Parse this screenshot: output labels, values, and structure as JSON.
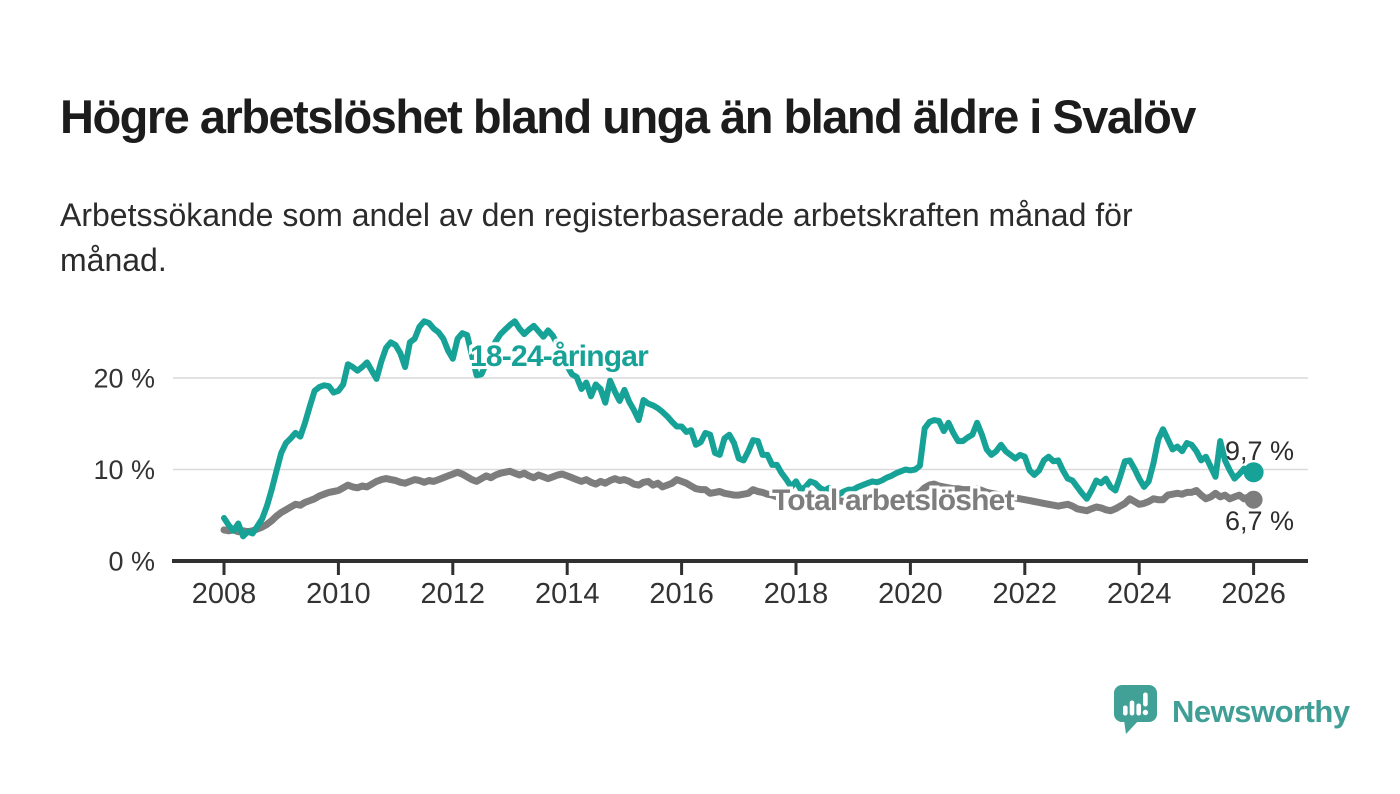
{
  "header": {
    "title": "Högre arbetslöshet bland unga än bland äldre i Svalöv",
    "subtitle": "Arbetssökande som andel av den registerbaserade arbetskraften månad för månad."
  },
  "branding": {
    "logo_text": "Newsworthy",
    "logo_color": "#3f9e95",
    "logo_icon": "speech-bubble-bar-chart"
  },
  "chart_data": {
    "type": "line",
    "title": "Högre arbetslöshet bland unga än bland äldre i Svalöv",
    "ylabel": "Arbetssökande som andel av den registerbaserade arbetskraften",
    "x_unit": "år (månadsvärden)",
    "y_unit": "%",
    "grid": "horizontal",
    "legend_position": "inline-labels",
    "x_range": [
      2007.1,
      2026.9
    ],
    "y_range": [
      0,
      27
    ],
    "x_ticks": [
      {
        "year": 2008,
        "label": "2008"
      },
      {
        "year": 2010,
        "label": "2010"
      },
      {
        "year": 2012,
        "label": "2012"
      },
      {
        "year": 2014,
        "label": "2014"
      },
      {
        "year": 2016,
        "label": "2016"
      },
      {
        "year": 2018,
        "label": "2018"
      },
      {
        "year": 2020,
        "label": "2020"
      },
      {
        "year": 2022,
        "label": "2022"
      },
      {
        "year": 2024,
        "label": "2024"
      },
      {
        "year": 2026,
        "label": "2026"
      }
    ],
    "y_ticks": [
      {
        "value": 0,
        "label": "0 %"
      },
      {
        "value": 10,
        "label": "10 %"
      },
      {
        "value": 20,
        "label": "20 %"
      }
    ],
    "series": [
      {
        "id": "youth",
        "label": "18-24-åringar",
        "color": "#17a297",
        "line_width": 6,
        "end_value": 9.7,
        "end_label": "9,7 %",
        "monthly_values_by_year": {
          "2008": [
            4.7,
            3.9,
            3.3,
            4.1,
            2.7,
            3.2,
            3.0,
            3.8,
            4.6,
            6.0,
            7.8,
            9.8
          ],
          "2009": [
            11.8,
            12.9,
            13.4,
            14.0,
            13.6,
            15.1,
            16.9,
            18.6,
            19.0,
            19.2,
            19.1,
            18.4
          ],
          "2010": [
            18.6,
            19.3,
            21.5,
            21.2,
            20.8,
            21.2,
            21.7,
            20.8,
            19.9,
            21.8,
            23.3,
            23.9
          ],
          "2011": [
            23.6,
            22.7,
            21.2,
            23.9,
            24.3,
            25.6,
            26.2,
            26.0,
            25.4,
            25.0,
            24.3,
            23.0
          ],
          "2012": [
            22.1,
            24.3,
            24.9,
            24.7,
            22.5,
            20.3,
            20.4,
            21.6,
            23.0,
            24.0,
            24.8,
            25.3
          ],
          "2013": [
            25.8,
            26.2,
            25.4,
            24.8,
            25.3,
            25.7,
            25.1,
            24.5,
            25.2,
            24.6,
            23.6,
            22.5
          ],
          "2014": [
            21.3,
            20.4,
            20.1,
            18.8,
            19.5,
            18.0,
            19.3,
            18.8,
            17.3,
            19.7,
            18.5,
            17.5
          ],
          "2015": [
            18.7,
            17.4,
            16.5,
            15.4,
            17.6,
            17.2,
            17.0,
            16.7,
            16.3,
            15.8,
            15.2,
            14.7
          ],
          "2016": [
            14.7,
            14.1,
            14.3,
            12.7,
            13.0,
            14.0,
            13.8,
            11.8,
            11.6,
            13.4,
            13.8,
            12.9
          ],
          "2017": [
            11.2,
            11.0,
            12.0,
            13.2,
            13.1,
            11.6,
            11.6,
            10.5,
            10.5,
            9.6,
            8.9,
            8.1
          ],
          "2018": [
            8.7,
            7.8,
            8.1,
            8.7,
            8.5,
            8.0,
            7.7,
            8.0,
            7.5,
            7.3,
            7.6,
            7.8
          ],
          "2019": [
            7.8,
            8.1,
            8.3,
            8.5,
            8.7,
            8.6,
            8.8,
            9.1,
            9.3,
            9.6,
            9.8,
            10.0
          ],
          "2020": [
            9.9,
            10.0,
            10.4,
            14.5,
            15.2,
            15.4,
            15.3,
            14.2,
            15.1,
            14.0,
            13.1,
            13.1
          ],
          "2021": [
            13.5,
            13.8,
            15.1,
            13.8,
            12.2,
            11.6,
            12.0,
            12.7,
            12.0,
            11.6,
            11.2,
            11.6
          ],
          "2022": [
            11.4,
            9.9,
            9.4,
            9.9,
            11.0,
            11.4,
            10.9,
            11.0,
            9.9,
            9.0,
            8.8,
            8.1
          ],
          "2023": [
            7.4,
            6.8,
            7.7,
            8.8,
            8.5,
            9.0,
            8.1,
            7.7,
            9.2,
            10.9,
            11.0,
            10.1
          ],
          "2024": [
            9.0,
            8.1,
            8.7,
            10.7,
            13.3,
            14.4,
            13.3,
            12.2,
            12.5,
            12.0,
            12.9,
            12.7
          ],
          "2025": [
            12.0,
            11.0,
            11.4,
            10.3,
            9.2,
            13.1,
            11.0,
            9.9,
            9.0,
            9.5,
            10.1,
            9.2
          ],
          "2026": [
            9.7
          ]
        }
      },
      {
        "id": "total",
        "label": "Total arbetslöshet",
        "color": "#7d7d7d",
        "line_width": 7,
        "end_value": 6.7,
        "end_label": "6,7 %",
        "monthly_values_by_year": {
          "2008": [
            3.4,
            3.3,
            3.4,
            3.2,
            3.3,
            3.2,
            3.3,
            3.5,
            3.7,
            4.0,
            4.4,
            4.9
          ],
          "2009": [
            5.3,
            5.6,
            5.9,
            6.2,
            6.1,
            6.4,
            6.6,
            6.8,
            7.1,
            7.3,
            7.5,
            7.6
          ],
          "2010": [
            7.7,
            8.0,
            8.3,
            8.1,
            8.0,
            8.2,
            8.1,
            8.4,
            8.7,
            8.9,
            9.0,
            8.9
          ],
          "2011": [
            8.8,
            8.6,
            8.5,
            8.7,
            8.9,
            8.8,
            8.6,
            8.8,
            8.7,
            8.9,
            9.1,
            9.3
          ],
          "2012": [
            9.5,
            9.7,
            9.5,
            9.2,
            8.9,
            8.7,
            9.0,
            9.3,
            9.1,
            9.4,
            9.6,
            9.7
          ],
          "2013": [
            9.8,
            9.6,
            9.4,
            9.6,
            9.3,
            9.1,
            9.4,
            9.2,
            9.0,
            9.2,
            9.4,
            9.5
          ],
          "2014": [
            9.3,
            9.1,
            8.9,
            8.7,
            8.9,
            8.6,
            8.4,
            8.7,
            8.5,
            8.8,
            9.0,
            8.8
          ],
          "2015": [
            8.9,
            8.7,
            8.4,
            8.3,
            8.6,
            8.7,
            8.3,
            8.5,
            8.1,
            8.3,
            8.5,
            8.9
          ],
          "2016": [
            8.7,
            8.5,
            8.2,
            7.9,
            7.8,
            7.8,
            7.4,
            7.5,
            7.6,
            7.4,
            7.3,
            7.2
          ],
          "2017": [
            7.2,
            7.3,
            7.4,
            7.8,
            7.6,
            7.5,
            7.3,
            7.2,
            7.0,
            7.0,
            6.9,
            6.9
          ],
          "2018": [
            6.9,
            7.0,
            6.8,
            6.9,
            6.7,
            6.8,
            6.6,
            6.7,
            6.5,
            6.6,
            6.5,
            6.6
          ],
          "2019": [
            6.5,
            6.6,
            6.7,
            6.6,
            6.8,
            6.7,
            6.8,
            6.9,
            6.8,
            6.9,
            7.0,
            7.0
          ],
          "2020": [
            7.0,
            7.2,
            7.5,
            8.0,
            8.3,
            8.4,
            8.2,
            8.1,
            8.0,
            7.9,
            7.9,
            7.8
          ],
          "2021": [
            7.8,
            7.8,
            7.9,
            7.7,
            7.5,
            7.4,
            7.3,
            7.2,
            7.1,
            7.0,
            6.9,
            6.8
          ],
          "2022": [
            6.7,
            6.6,
            6.5,
            6.4,
            6.3,
            6.2,
            6.1,
            6.0,
            6.1,
            6.2,
            6.0,
            5.7
          ],
          "2023": [
            5.6,
            5.5,
            5.7,
            5.9,
            5.8,
            5.6,
            5.5,
            5.7,
            6.0,
            6.3,
            6.8,
            6.5
          ],
          "2024": [
            6.2,
            6.3,
            6.5,
            6.8,
            6.7,
            6.7,
            7.2,
            7.3,
            7.4,
            7.3,
            7.5,
            7.5
          ],
          "2025": [
            7.7,
            7.2,
            6.8,
            7.0,
            7.4,
            7.0,
            7.2,
            6.8,
            7.0,
            7.2,
            6.8,
            7.0
          ],
          "2026": [
            6.7
          ]
        }
      }
    ]
  }
}
